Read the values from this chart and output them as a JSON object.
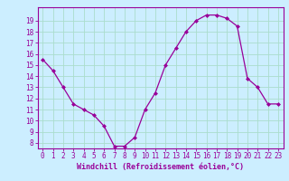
{
  "x": [
    0,
    1,
    2,
    3,
    4,
    5,
    6,
    7,
    8,
    9,
    10,
    11,
    12,
    13,
    14,
    15,
    16,
    17,
    18,
    19,
    20,
    21,
    22,
    23
  ],
  "y": [
    15.5,
    14.5,
    13.0,
    11.5,
    11.0,
    10.5,
    9.5,
    7.7,
    7.7,
    8.5,
    11.0,
    12.5,
    15.0,
    16.5,
    18.0,
    19.0,
    19.5,
    19.5,
    19.2,
    18.5,
    13.8,
    13.0,
    11.5,
    11.5
  ],
  "line_color": "#990099",
  "marker": "D",
  "marker_size": 2.0,
  "line_width": 0.9,
  "bg_color": "#cceeff",
  "grid_color": "#aaddcc",
  "xlabel": "Windchill (Refroidissement éolien,°C)",
  "xlabel_color": "#990099",
  "tick_color": "#990099",
  "spine_color": "#990099",
  "xlim": [
    -0.5,
    23.5
  ],
  "ylim": [
    7.5,
    20.2
  ],
  "yticks": [
    8,
    9,
    10,
    11,
    12,
    13,
    14,
    15,
    16,
    17,
    18,
    19
  ],
  "xticks": [
    0,
    1,
    2,
    3,
    4,
    5,
    6,
    7,
    8,
    9,
    10,
    11,
    12,
    13,
    14,
    15,
    16,
    17,
    18,
    19,
    20,
    21,
    22,
    23
  ],
  "xtick_labels": [
    "0",
    "1",
    "2",
    "3",
    "4",
    "5",
    "6",
    "7",
    "8",
    "9",
    "10",
    "11",
    "12",
    "13",
    "14",
    "15",
    "16",
    "17",
    "18",
    "19",
    "20",
    "21",
    "22",
    "23"
  ],
  "tick_fontsize": 5.5,
  "xlabel_fontsize": 6.0
}
